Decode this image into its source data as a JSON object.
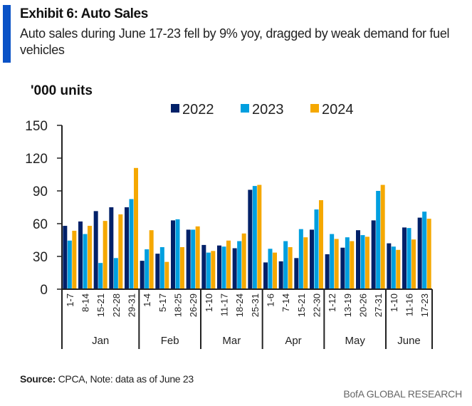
{
  "header": {
    "title": "Exhibit 6: Auto Sales",
    "subtitle": "Auto sales during June 17-23 fell by 9% yoy, dragged by weak demand for fuel vehicles"
  },
  "footer": {
    "source_label": "Source:",
    "source_text": " CPCA, Note: data as of June 23",
    "brand": "BofA GLOBAL RESEARCH"
  },
  "colors": {
    "accent": "#0a52c6",
    "2022": "#012169",
    "2023": "#009fdf",
    "2024": "#f5a800"
  },
  "chart_data": {
    "type": "bar",
    "title": "Exhibit 6: Auto Sales",
    "ylabel": "'000 units",
    "xlabel": "",
    "ylim": [
      0,
      150
    ],
    "yticks": [
      0,
      30,
      60,
      90,
      120,
      150
    ],
    "grid": false,
    "legend_position": "top-center",
    "groups": [
      {
        "label": "Jan",
        "categories": [
          "1-7",
          "8-14",
          "15-21",
          "22-28",
          "29-31"
        ]
      },
      {
        "label": "Feb",
        "categories": [
          "1-4",
          "5-17",
          "18-25",
          "26-29"
        ]
      },
      {
        "label": "Mar",
        "categories": [
          "1-10",
          "11-17",
          "18-24",
          "25-31"
        ]
      },
      {
        "label": "Apr",
        "categories": [
          "1-6",
          "7-14",
          "15-21",
          "22-30"
        ]
      },
      {
        "label": "May",
        "categories": [
          "1-12",
          "13-19",
          "20-26",
          "27-31"
        ]
      },
      {
        "label": "June",
        "categories": [
          "1-10",
          "11-16",
          "17-23"
        ]
      }
    ],
    "series": [
      {
        "name": "2022",
        "color": "#012169",
        "values": [
          58,
          62,
          71.5,
          75,
          75,
          26,
          32.5,
          63,
          54.5,
          40.5,
          40,
          37.5,
          91,
          24.5,
          25.5,
          28.5,
          54.5,
          32,
          38,
          54,
          63,
          42,
          56.5,
          65.5
        ]
      },
      {
        "name": "2023",
        "color": "#009fdf",
        "values": [
          44.5,
          50.5,
          24,
          28.5,
          82.5,
          36.5,
          38.5,
          64,
          54.5,
          33.5,
          39,
          44,
          94.5,
          37,
          44,
          55,
          73,
          50.5,
          47.5,
          49.5,
          90,
          39,
          56,
          71
        ]
      },
      {
        "name": "2024",
        "color": "#f5a800",
        "values": [
          53.5,
          58,
          62.5,
          68.5,
          111,
          54,
          25,
          38.5,
          57.5,
          35,
          44.5,
          51,
          95.5,
          33.5,
          38.5,
          47.5,
          81.5,
          46,
          44,
          48,
          95.5,
          36,
          45.5,
          64.5
        ]
      }
    ]
  }
}
